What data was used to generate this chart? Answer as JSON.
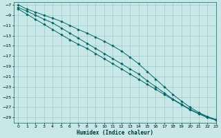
{
  "xlabel": "Humidex (Indice chaleur)",
  "bg_color": "#c8e8e8",
  "grid_color": "#a0c8c8",
  "line_color": "#006666",
  "xlim": [
    -0.5,
    23
  ],
  "ylim": [
    -30,
    -6.5
  ],
  "yticks": [
    -7,
    -9,
    -11,
    -13,
    -15,
    -17,
    -19,
    -21,
    -23,
    -25,
    -27,
    -29
  ],
  "xticks": [
    0,
    1,
    2,
    3,
    4,
    5,
    6,
    7,
    8,
    9,
    10,
    11,
    12,
    13,
    14,
    15,
    16,
    17,
    18,
    19,
    20,
    21,
    22,
    23
  ],
  "line1_x": [
    0,
    1,
    2,
    3,
    4,
    5,
    6,
    7,
    8,
    9,
    10,
    11,
    12,
    13,
    14,
    15,
    16,
    17,
    18,
    19,
    20,
    21,
    22,
    23
  ],
  "line1_y": [
    -7.0,
    -7.8,
    -8.4,
    -9.0,
    -9.6,
    -10.2,
    -11.0,
    -11.8,
    -12.5,
    -13.3,
    -14.1,
    -15.0,
    -16.0,
    -17.2,
    -18.5,
    -20.0,
    -21.5,
    -23.0,
    -24.5,
    -25.8,
    -27.0,
    -28.0,
    -28.8,
    -29.4
  ],
  "line2_x": [
    0,
    1,
    2,
    3,
    4,
    5,
    6,
    7,
    8,
    9,
    10,
    11,
    12,
    13,
    14,
    15,
    16,
    17,
    18,
    19,
    20,
    21,
    22,
    23
  ],
  "line2_y": [
    -7.5,
    -8.2,
    -9.0,
    -9.8,
    -10.5,
    -11.5,
    -12.5,
    -13.5,
    -14.5,
    -15.5,
    -16.5,
    -17.5,
    -18.5,
    -19.5,
    -20.5,
    -21.8,
    -23.0,
    -24.2,
    -25.4,
    -26.4,
    -27.4,
    -28.2,
    -28.9,
    -29.5
  ],
  "line3_x": [
    0,
    1,
    2,
    3,
    4,
    5,
    6,
    7,
    8,
    9,
    10,
    11,
    12,
    13,
    14,
    15,
    16,
    17,
    18,
    19,
    20,
    21,
    22,
    23
  ],
  "line3_y": [
    -7.8,
    -8.8,
    -9.8,
    -10.8,
    -11.8,
    -12.8,
    -13.8,
    -14.7,
    -15.5,
    -16.5,
    -17.5,
    -18.5,
    -19.5,
    -20.5,
    -21.5,
    -22.5,
    -23.5,
    -24.5,
    -25.5,
    -26.5,
    -27.5,
    -28.3,
    -29.0,
    -29.5
  ]
}
